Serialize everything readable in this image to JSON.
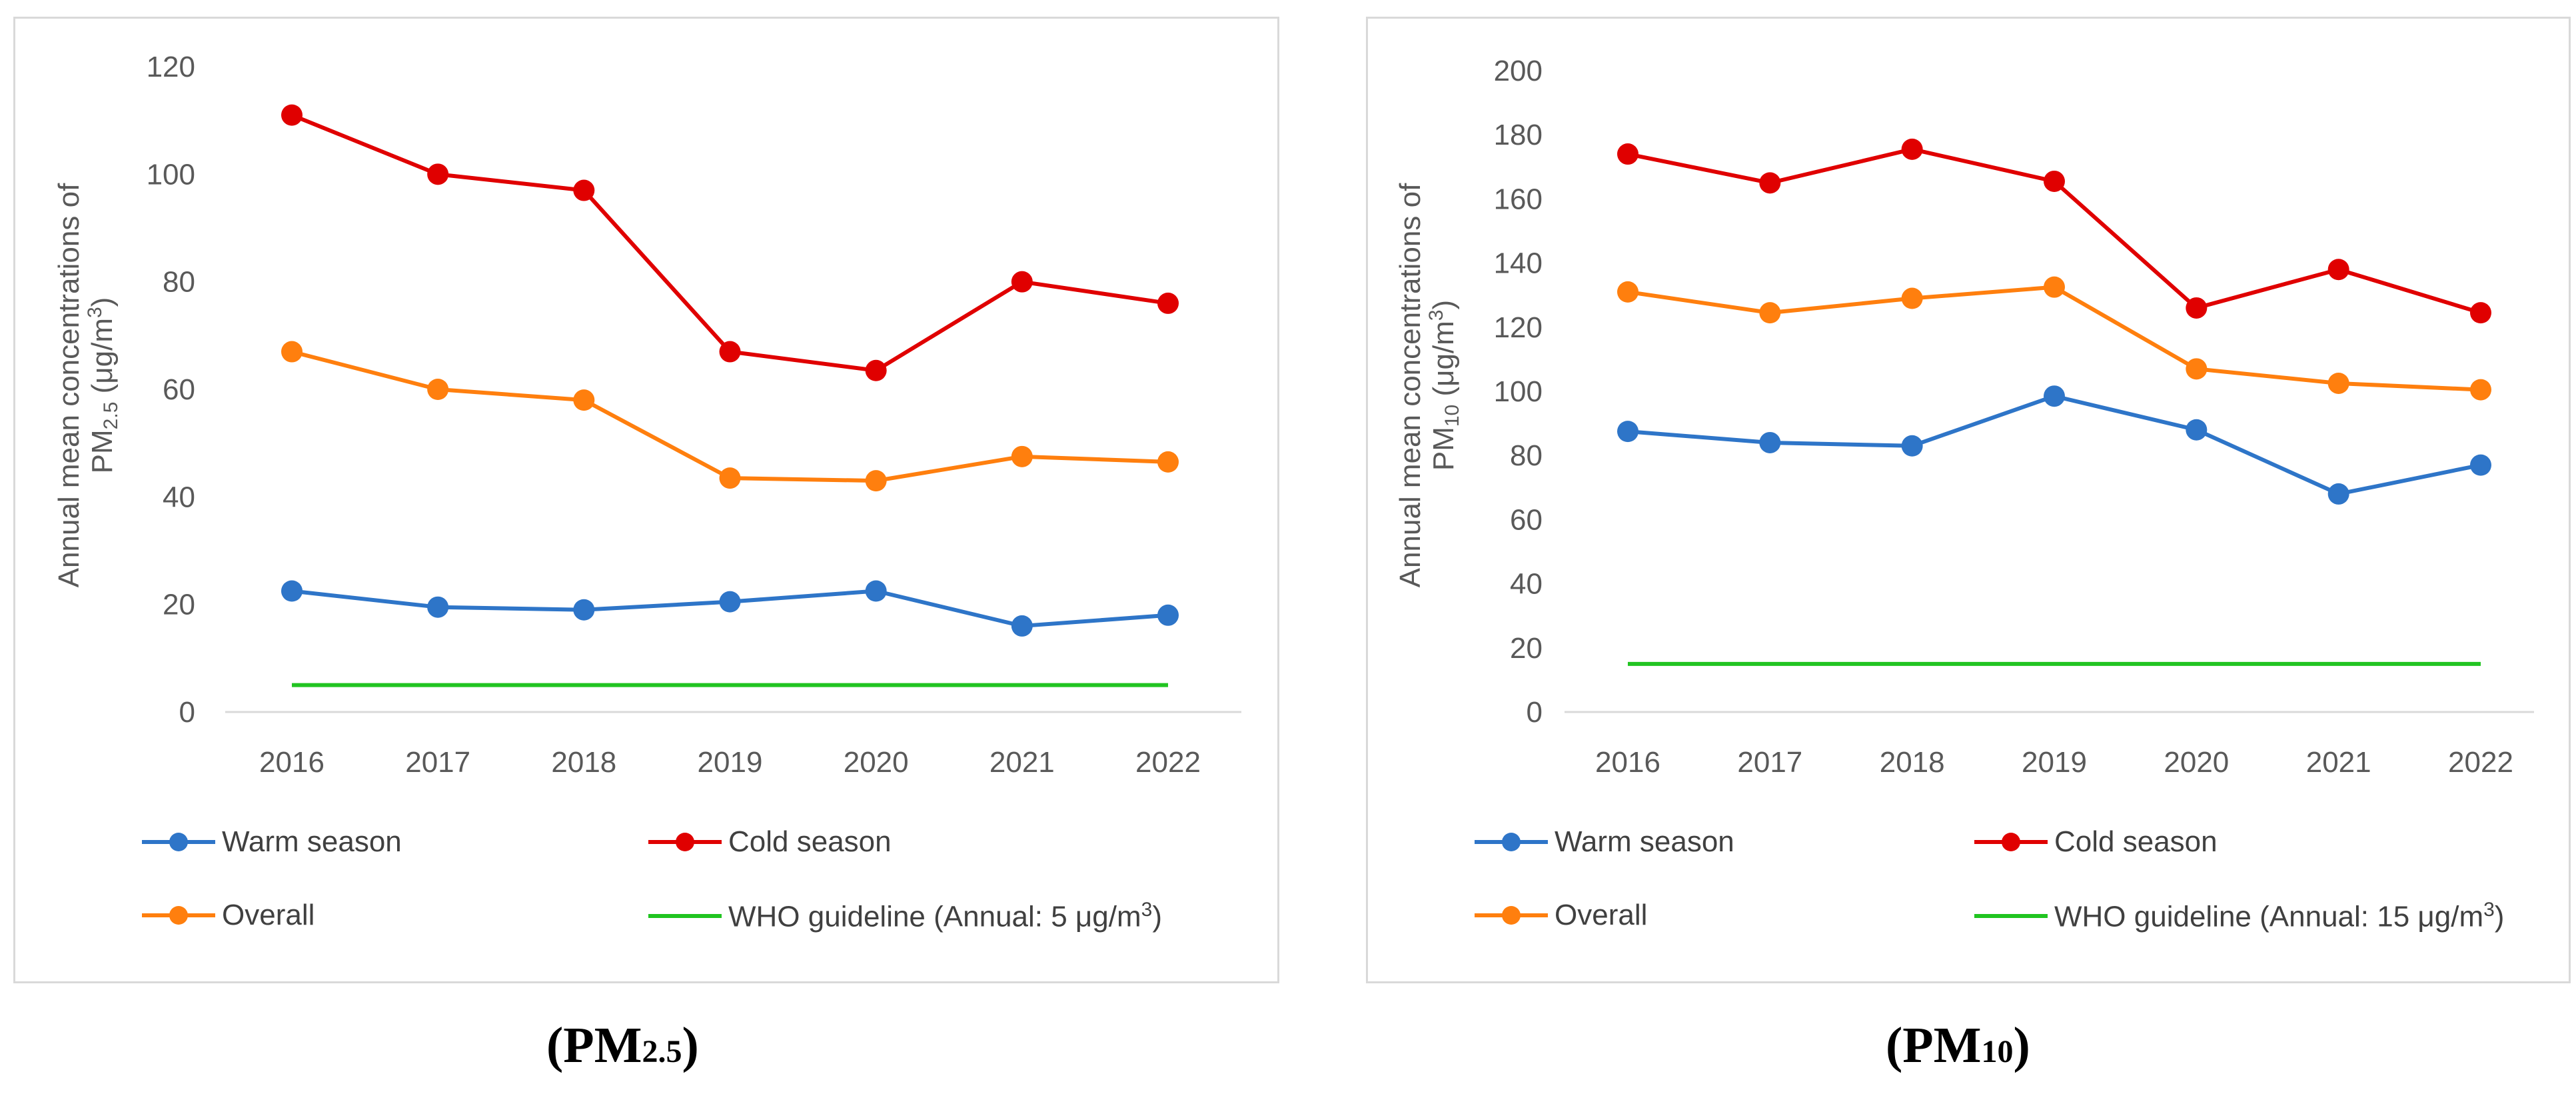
{
  "chart_data": [
    {
      "type": "line",
      "id": "pm25",
      "categories": [
        "2016",
        "2017",
        "2018",
        "2019",
        "2020",
        "2021",
        "2022"
      ],
      "ylim": [
        0,
        120
      ],
      "yticks": [
        0,
        20,
        40,
        60,
        80,
        100,
        120
      ],
      "ylabel_line1": "Annual mean concentrations of",
      "ylabel_line2_prefix": "PM",
      "ylabel_line2_sub": "2.5",
      "ylabel_line2_suffix": " (μg/m",
      "ylabel_line2_sup": "3",
      "ylabel_line2_end": ")",
      "series": [
        {
          "name": "Warm season",
          "color": "#2E75C8",
          "values": [
            22.5,
            19.5,
            19,
            20.5,
            22.5,
            16,
            18
          ],
          "markers": true
        },
        {
          "name": "Cold season",
          "color": "#E00000",
          "values": [
            111,
            100,
            97,
            67,
            63.5,
            80,
            76
          ],
          "markers": true
        },
        {
          "name": "Overall",
          "color": "#FF7F0E",
          "values": [
            67,
            60,
            58,
            43.5,
            43,
            47.5,
            46.5
          ],
          "markers": true
        },
        {
          "name": "WHO guideline (Annual: 5 μg/m",
          "name_sup": "3",
          "name_end": ")",
          "color": "#21C421",
          "values": [
            5,
            5,
            5,
            5,
            5,
            5,
            5
          ],
          "markers": false
        }
      ],
      "caption_main": "(PM",
      "caption_sub": "2.5",
      "caption_end": ")"
    },
    {
      "type": "line",
      "id": "pm10",
      "categories": [
        "2016",
        "2017",
        "2018",
        "2019",
        "2020",
        "2021",
        "2022"
      ],
      "ylim": [
        0,
        200
      ],
      "yticks": [
        0,
        20,
        40,
        60,
        80,
        100,
        120,
        140,
        160,
        180,
        200
      ],
      "ylabel_line1": "Annual mean concentrations of",
      "ylabel_line2_prefix": "PM",
      "ylabel_line2_sub": "10",
      "ylabel_line2_suffix": " (μg/m",
      "ylabel_line2_sup": "3",
      "ylabel_line2_end": ")",
      "series": [
        {
          "name": "Warm season",
          "color": "#2E75C8",
          "values": [
            87.5,
            84,
            83,
            98.5,
            88,
            68,
            77
          ],
          "markers": true
        },
        {
          "name": "Cold season",
          "color": "#E00000",
          "values": [
            174,
            165,
            175.5,
            165.5,
            126,
            138,
            124.5
          ],
          "markers": true
        },
        {
          "name": "Overall",
          "color": "#FF7F0E",
          "values": [
            131,
            124.5,
            129,
            132.5,
            107,
            102.5,
            100.5
          ],
          "markers": true
        },
        {
          "name": "WHO guideline (Annual: 15 μg/m",
          "name_sup": "3",
          "name_end": ")",
          "color": "#21C421",
          "values": [
            15,
            15,
            15,
            15,
            15,
            15,
            15
          ],
          "markers": false
        }
      ],
      "caption_main": "(PM",
      "caption_sub": "10",
      "caption_end": ")"
    }
  ]
}
